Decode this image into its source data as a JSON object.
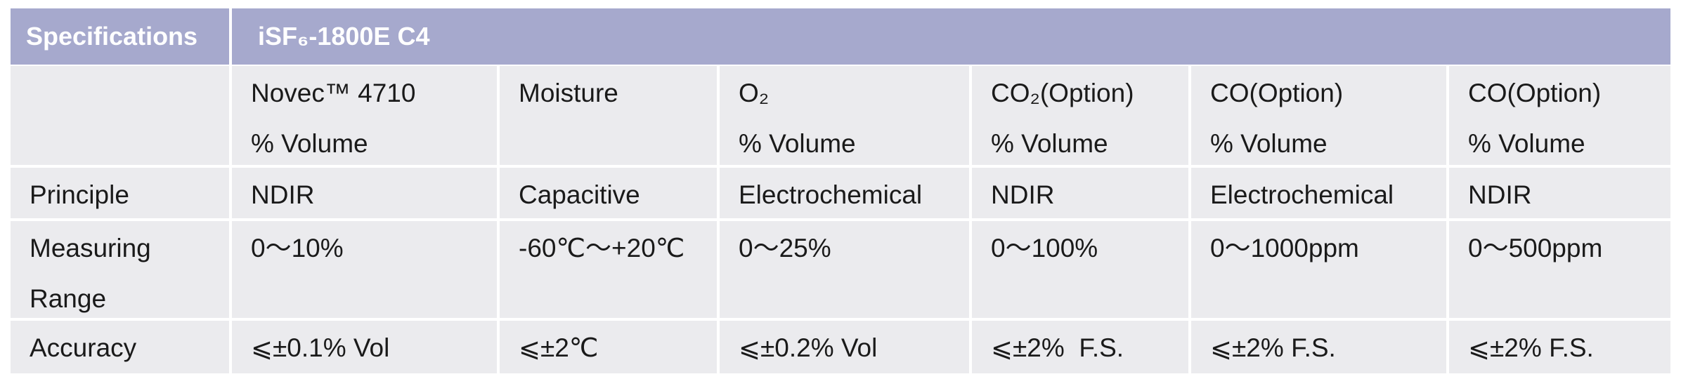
{
  "header": {
    "label": "Specifications",
    "title": "iSF₆-1800E C4"
  },
  "table": {
    "rows": [
      [
        [],
        [
          "Novec™ 4710",
          "% Volume"
        ],
        [
          "Moisture"
        ],
        [
          "O₂",
          "% Volume"
        ],
        [
          "CO₂(Option)",
          "% Volume"
        ],
        [
          "CO(Option)",
          "% Volume"
        ],
        [
          "CO(Option)",
          "% Volume"
        ]
      ],
      [
        [
          "Principle"
        ],
        [
          "NDIR"
        ],
        [
          "Capacitive"
        ],
        [
          "Electrochemical"
        ],
        [
          "NDIR"
        ],
        [
          "Electrochemical"
        ],
        [
          "NDIR"
        ]
      ],
      [
        [
          "Measuring",
          "Range"
        ],
        [
          "0～10%"
        ],
        [
          "-60℃～+20℃"
        ],
        [
          "0～25%"
        ],
        [
          "0～100%"
        ],
        [
          "0～1000ppm"
        ],
        [
          "0～500ppm"
        ]
      ],
      [
        [
          "Accuracy"
        ],
        [
          "⩽±0.1% Vol"
        ],
        [
          "⩽±2℃"
        ],
        [
          "⩽±0.2% Vol"
        ],
        [
          "⩽±2%  F.S."
        ],
        [
          "⩽±2% F.S."
        ],
        [
          "⩽±2% F.S."
        ]
      ]
    ]
  }
}
